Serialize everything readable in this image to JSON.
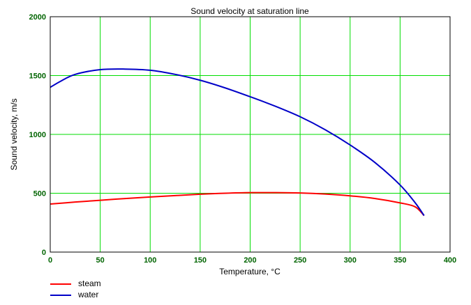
{
  "chart_data": {
    "type": "line",
    "title": "Sound velocity at saturation line",
    "xlabel": "Temperature, °C",
    "ylabel": "Sound velocity, m/s",
    "xlim": [
      0,
      400
    ],
    "ylim": [
      0,
      2000
    ],
    "x_ticks": [
      "0",
      "50",
      "100",
      "150",
      "200",
      "250",
      "300",
      "350",
      "400"
    ],
    "y_ticks": [
      "0",
      "500",
      "1000",
      "1500",
      "2000"
    ],
    "grid": true,
    "legend_position": "bottom-left",
    "series": [
      {
        "name": "steam",
        "color": "#ff0000",
        "x": [
          0,
          25,
          50,
          75,
          100,
          125,
          150,
          175,
          200,
          225,
          250,
          275,
          300,
          325,
          350,
          365,
          374
        ],
        "y": [
          408,
          425,
          440,
          455,
          468,
          480,
          492,
          500,
          505,
          505,
          502,
          493,
          478,
          455,
          418,
          385,
          310
        ]
      },
      {
        "name": "water",
        "color": "#0000c8",
        "x": [
          0,
          10,
          25,
          50,
          75,
          100,
          125,
          150,
          175,
          200,
          225,
          250,
          275,
          300,
          325,
          350,
          365,
          374
        ],
        "y": [
          1400,
          1450,
          1510,
          1550,
          1555,
          1545,
          1510,
          1460,
          1395,
          1320,
          1240,
          1150,
          1040,
          910,
          760,
          570,
          420,
          310
        ]
      }
    ]
  }
}
